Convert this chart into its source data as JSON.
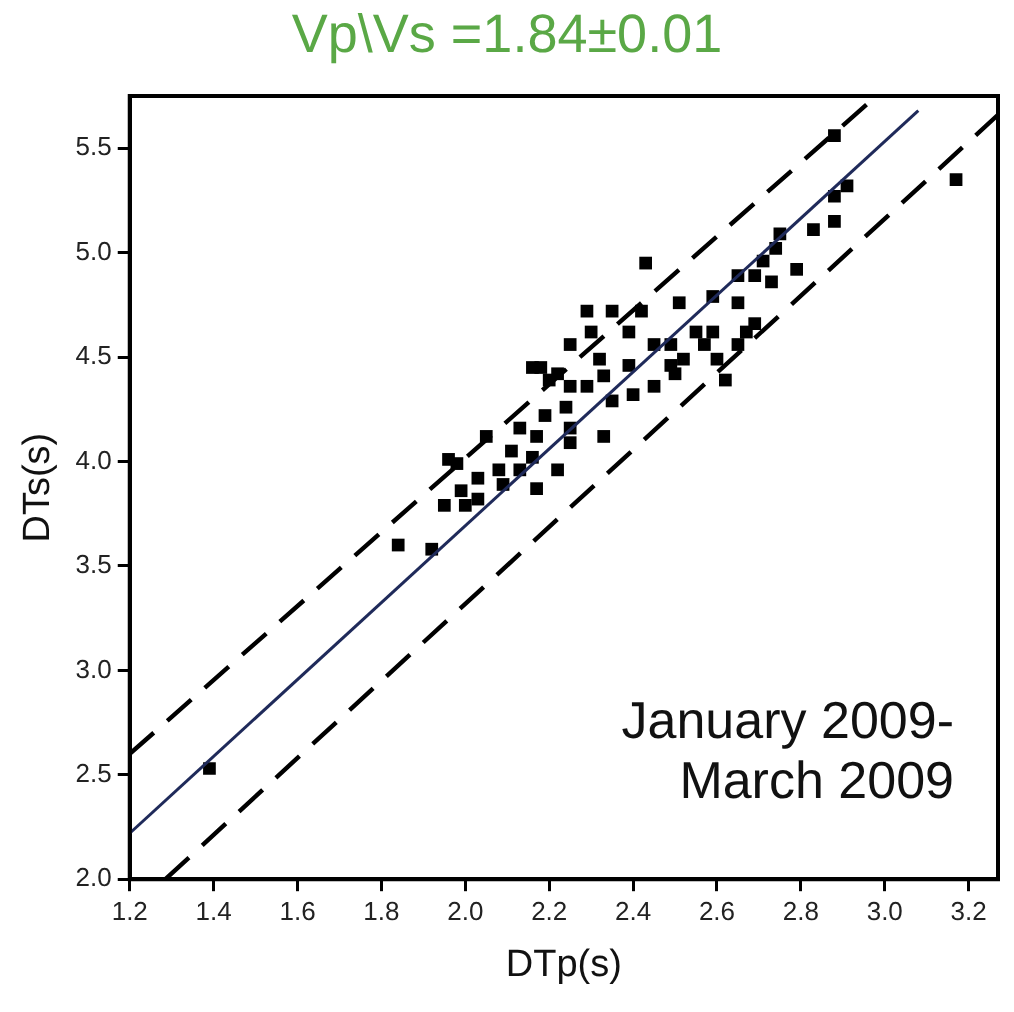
{
  "chart_data": {
    "type": "scatter",
    "title": "Vp\\Vs =1.84±0.01",
    "xlabel": "DTp(s)",
    "ylabel": "DTs(s)",
    "xlim": [
      1.2,
      3.27
    ],
    "ylim": [
      2.0,
      5.75
    ],
    "xticks": [
      {
        "value": 1.2,
        "label": "1.2"
      },
      {
        "value": 1.4,
        "label": "1.4"
      },
      {
        "value": 1.6,
        "label": "1.6"
      },
      {
        "value": 1.8,
        "label": "1.8"
      },
      {
        "value": 2.0,
        "label": "2.0"
      },
      {
        "value": 2.2,
        "label": "2.2"
      },
      {
        "value": 2.4,
        "label": "2.4"
      },
      {
        "value": 2.6,
        "label": "2.6"
      },
      {
        "value": 2.8,
        "label": "2.8"
      },
      {
        "value": 3.0,
        "label": "3.0"
      },
      {
        "value": 3.2,
        "label": "3.2"
      }
    ],
    "yticks": [
      {
        "value": 2.0,
        "label": "2.0"
      },
      2.5,
      {
        "value": 3.0,
        "label": "3.0"
      },
      3.5,
      {
        "value": 4.0,
        "label": "4.0"
      },
      4.5,
      {
        "value": 5.0,
        "label": "5.0"
      },
      5.5
    ],
    "grid": false,
    "legend": false,
    "annotations": [
      "January 2009-\nMarch 2009"
    ],
    "series": [
      {
        "type": "scatter",
        "color": "#000000",
        "marker": "square",
        "x": [
          2.88,
          3.17,
          2.91,
          2.88,
          2.88,
          2.83,
          2.75,
          2.79,
          2.73,
          2.71,
          2.69,
          2.65,
          2.67,
          2.65,
          2.65,
          2.59,
          2.6,
          2.55,
          2.51,
          2.43,
          2.52,
          2.49,
          2.45,
          2.39,
          2.42,
          2.35,
          2.29,
          2.25,
          2.32,
          2.16,
          2.18,
          2.39,
          2.35,
          2.29,
          2.22,
          2.24,
          2.19,
          2.33,
          2.25,
          2.17,
          2.16,
          2.25,
          2.22,
          2.17,
          2.13,
          2.09,
          2.11,
          2.05,
          2.03,
          1.99,
          1.96,
          1.98,
          1.95,
          2.0,
          1.84,
          1.92,
          2.33,
          2.5,
          2.59,
          2.62,
          2.57,
          2.69,
          2.74,
          2.13,
          2.3,
          2.4,
          2.03,
          1.39,
          2.08,
          2.2,
          2.25,
          2.45,
          2.49
        ],
        "values": [
          5.56,
          5.35,
          5.32,
          5.27,
          5.15,
          5.11,
          5.09,
          4.92,
          4.86,
          4.96,
          4.89,
          4.89,
          4.62,
          4.56,
          4.76,
          4.79,
          4.49,
          4.62,
          4.76,
          4.95,
          4.49,
          4.46,
          4.56,
          4.62,
          4.72,
          4.72,
          4.72,
          4.56,
          4.49,
          4.45,
          4.45,
          4.46,
          4.29,
          4.36,
          4.42,
          4.26,
          4.22,
          4.12,
          4.16,
          4.12,
          4.02,
          4.09,
          3.96,
          3.87,
          3.96,
          3.89,
          4.05,
          4.12,
          3.92,
          3.86,
          4.01,
          3.99,
          3.79,
          3.79,
          3.6,
          3.58,
          4.41,
          4.42,
          4.62,
          4.39,
          4.56,
          4.66,
          5.02,
          4.16,
          4.62,
          4.32,
          3.82,
          2.53,
          3.96,
          4.39,
          4.36,
          4.36,
          4.56
        ]
      },
      {
        "type": "line",
        "color": "#1f2a5a",
        "marker": "none",
        "line_style": "solid",
        "x": [
          1.2,
          3.08
        ],
        "values": [
          2.22,
          5.68
        ]
      },
      {
        "type": "line",
        "color": "#000000",
        "marker": "none",
        "line_style": "dashed",
        "x": [
          1.2,
          2.98
        ],
        "values": [
          2.6,
          5.75
        ]
      },
      {
        "type": "line",
        "color": "#000000",
        "marker": "none",
        "line_style": "dashed",
        "x": [
          1.285,
          3.27
        ],
        "values": [
          2.0,
          5.66
        ]
      }
    ]
  }
}
